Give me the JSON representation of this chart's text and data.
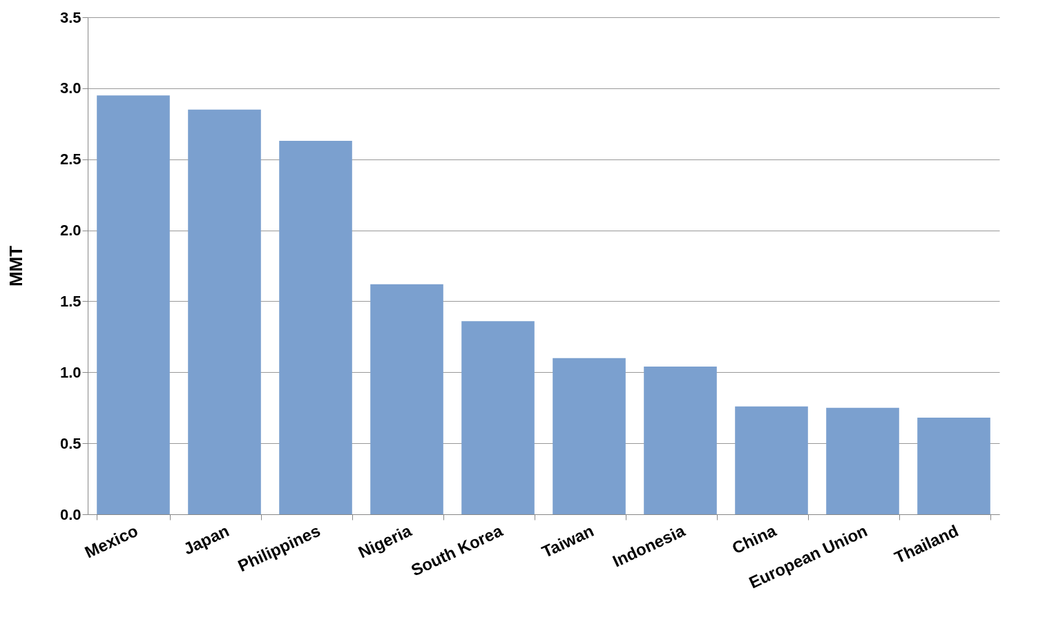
{
  "chart_data": {
    "type": "bar",
    "ylabel": "MMT",
    "categories": [
      "Mexico",
      "Japan",
      "Philippines",
      "Nigeria",
      "South Korea",
      "Taiwan",
      "Indonesia",
      "China",
      "European Union",
      "Thailand"
    ],
    "values": [
      2.95,
      2.85,
      2.63,
      1.62,
      1.36,
      1.1,
      1.04,
      0.76,
      0.75,
      0.68
    ],
    "color": "#7ba0cf",
    "ylim": [
      0,
      3.5
    ],
    "yticks": [
      {
        "value": 0,
        "label": "0.0"
      },
      0.5,
      {
        "value": 1,
        "label": "1.0"
      },
      1.5,
      {
        "value": 2,
        "label": "2.0"
      },
      2.5,
      {
        "value": 3,
        "label": "3.0"
      },
      3.5
    ],
    "grid": "y"
  }
}
